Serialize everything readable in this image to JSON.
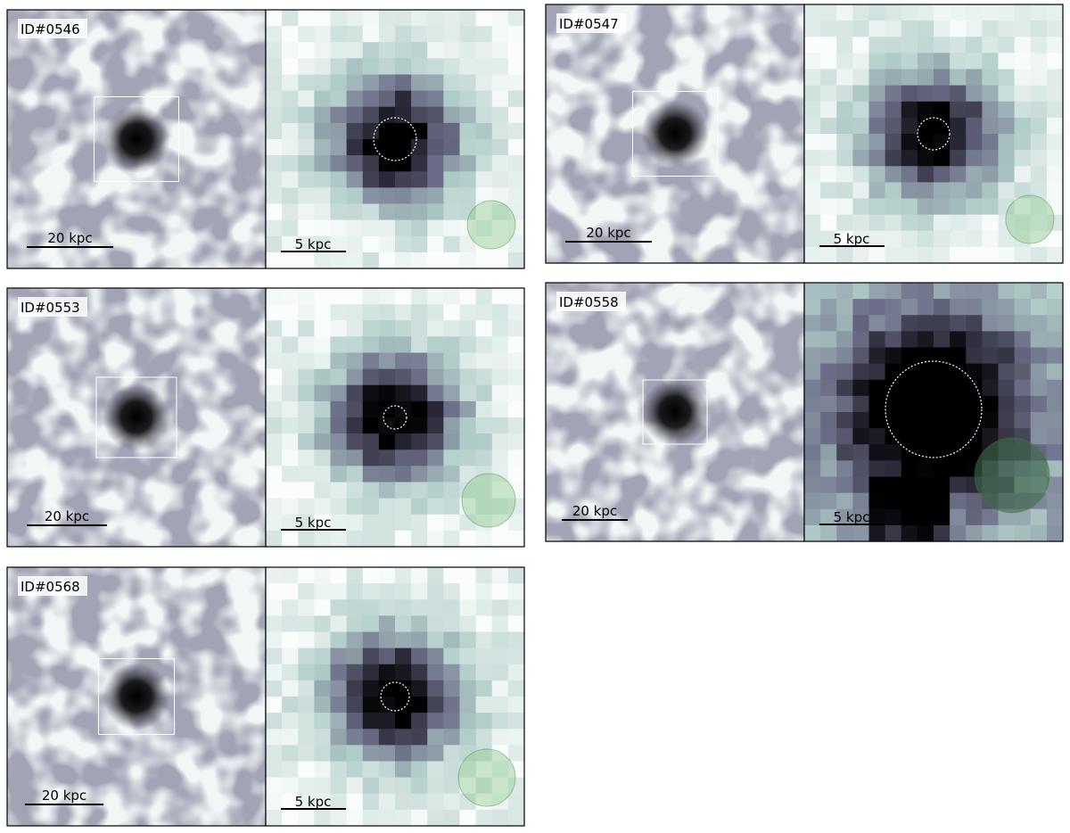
{
  "panels": [
    {
      "id": "ID#0546",
      "left_scale": "20 kpc",
      "right_scale": "5 kpc"
    },
    {
      "id": "ID#0547",
      "left_scale": "20 kpc",
      "right_scale": "5 kpc"
    },
    {
      "id": "ID#0553",
      "left_scale": "20 kpc",
      "right_scale": "5 kpc"
    },
    {
      "id": "ID#0558",
      "left_scale": "20 kpc",
      "right_scale": "5 kpc"
    },
    {
      "id": "ID#0568",
      "left_scale": "20 kpc",
      "right_scale": "5 kpc"
    }
  ]
}
